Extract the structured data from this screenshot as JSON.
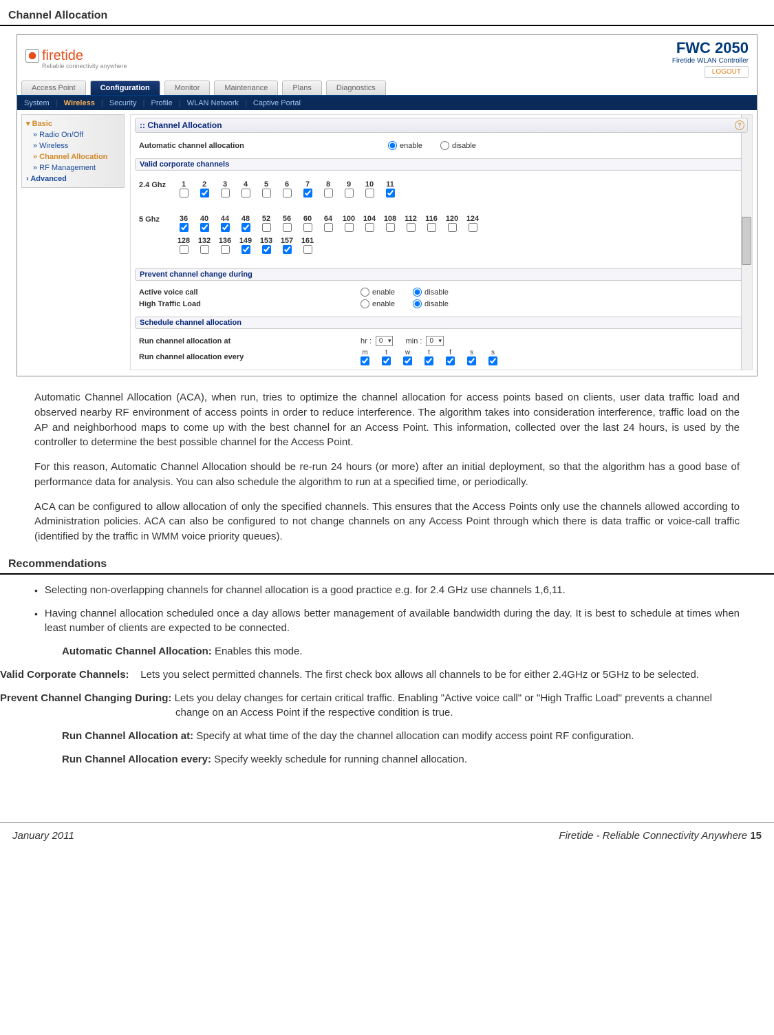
{
  "page_title": "Channel Allocation",
  "logo": {
    "name": "firetide",
    "tagline": "Reliable connectivity anywhere"
  },
  "product": {
    "name": "FWC 2050",
    "subtitle": "Firetide WLAN Controller",
    "logout": "LOGOUT"
  },
  "main_tabs": [
    "Access Point",
    "Configuration",
    "Monitor",
    "Maintenance",
    "Plans",
    "Diagnostics"
  ],
  "main_tab_active": 1,
  "sub_tabs": [
    "System",
    "Wireless",
    "Security",
    "Profile",
    "WLAN Network",
    "Captive Portal"
  ],
  "sub_tab_active": 1,
  "sidebar": {
    "basic": "Basic",
    "items": [
      "» Radio On/Off",
      "» Wireless",
      "» Channel Allocation",
      "» RF Management"
    ],
    "current": 2,
    "advanced": "Advanced"
  },
  "panel": {
    "title": "Channel Allocation",
    "auto_alloc": {
      "label": "Automatic channel allocation",
      "enable": "enable",
      "disable": "disable",
      "value": "enable"
    },
    "valid_hdr": "Valid corporate channels",
    "band24": {
      "label": "2.4 Ghz",
      "channels": [
        "1",
        "2",
        "3",
        "4",
        "5",
        "6",
        "7",
        "8",
        "9",
        "10",
        "11"
      ],
      "checked": [
        false,
        true,
        false,
        false,
        false,
        false,
        true,
        false,
        false,
        false,
        true
      ]
    },
    "band5": {
      "label": "5 Ghz",
      "row1": {
        "channels": [
          "36",
          "40",
          "44",
          "48",
          "52",
          "56",
          "60",
          "64",
          "100",
          "104",
          "108",
          "112",
          "116",
          "120",
          "124"
        ],
        "checked": [
          true,
          true,
          true,
          true,
          false,
          false,
          false,
          false,
          false,
          false,
          false,
          false,
          false,
          false,
          false
        ]
      },
      "row2": {
        "channels": [
          "128",
          "132",
          "136",
          "149",
          "153",
          "157",
          "161"
        ],
        "checked": [
          false,
          false,
          false,
          true,
          true,
          true,
          false
        ]
      }
    },
    "prevent_hdr": "Prevent channel change during",
    "prevent_rows": [
      {
        "label": "Active voice call",
        "value": "disable"
      },
      {
        "label": "High Traffic Load",
        "value": "disable"
      }
    ],
    "schedule_hdr": "Schedule channel allocation",
    "run_at": {
      "label": "Run channel allocation at",
      "hr_label": "hr :",
      "hr": "0",
      "min_label": "min :",
      "min": "0"
    },
    "run_every": {
      "label": "Run channel allocation every",
      "days": [
        "m",
        "t",
        "w",
        "t",
        "f",
        "s",
        "s"
      ],
      "checked": [
        true,
        true,
        true,
        true,
        true,
        true,
        true
      ]
    }
  },
  "body": {
    "p1": "Automatic Channel Allocation (ACA), when run, tries to optimize the channel allocation for access points based on clients, user data traffic load and observed nearby RF environment of access points in order to reduce interference. The algorithm takes into consideration interference, traffic load on the AP and neighborhood maps to come up with the best channel for an Access Point. This information, collected over the last 24 hours, is used by the controller to determine the best possible channel for the Access Point.",
    "p2": "For this reason, Automatic Channel Allocation should be re-run 24 hours (or more) after an initial deployment, so that the algorithm has a good base of performance data for analysis. You can also schedule the algorithm to run at a specified time, or periodically.",
    "p3": "ACA can be configured to allow allocation of only the specified channels. This ensures that the Access Points only use the channels allowed according to Administration policies. ACA can also be configured to not change channels on any Access Point through which there is data traffic or voice-call traffic (identified by the traffic in WMM voice priority queues)."
  },
  "rec_title": "Recommendations",
  "rec": {
    "b1": "Selecting non-overlapping channels for channel allocation is a good practice e.g. for 2.4 GHz use channels 1,6,11.",
    "b2": "Having channel allocation scheduled once a day allows better management of available bandwidth during the day. It is best to schedule at times when least number of clients are expected to be connected.",
    "d1t": "Automatic Channel Allocation:",
    "d1": " Enables this mode.",
    "d2t": "Valid Corporate Channels:",
    "d2": " Lets you select permitted channels. The first check box allows all channels to be for either 2.4GHz or 5GHz to be selected.",
    "d3t": "Prevent Channel Changing During:",
    "d3": " Lets you delay changes for certain critical traffic. Enabling \"Active voice call\" or \"High Traffic Load\" prevents a channel change on an Access Point if the respective condition is true.",
    "d4t": "Run Channel Allocation at:",
    "d4": " Specify at what time of the day the channel allocation can modify access point RF configuration.",
    "d5t": "Run Channel Allocation every:",
    "d5": " Specify weekly schedule for running channel allocation."
  },
  "footer": {
    "left": "January 2011",
    "right_text": "Firetide - Reliable Connectivity Anywhere ",
    "page": "15"
  },
  "colors": {
    "navy": "#0a2a5a",
    "link": "#1a4a9a",
    "accent": "#d38a2a",
    "rule": "#000000"
  }
}
